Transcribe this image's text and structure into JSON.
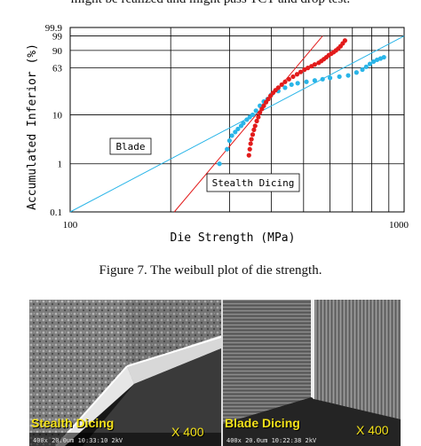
{
  "header_text": "might be realized and might pass TCT and drop test.",
  "figure_caption": "Figure 7.    The weibull plot of die strength.",
  "chart_data": {
    "type": "scatter",
    "title": "",
    "xlabel": "Die Strength (MPa)",
    "ylabel": "Accumulated Inferior (%)",
    "xscale": "log",
    "yscale": "weibull",
    "xlim": [
      100,
      1000
    ],
    "ylim": [
      0.1,
      99.9
    ],
    "x_tick_labels": [
      "100",
      "1000"
    ],
    "y_tick_labels": [
      "99.9",
      "99",
      "90",
      "63",
      "10",
      "1",
      "0.1"
    ],
    "grid": true,
    "annotations": [
      "Blade",
      "Stealth Dicing"
    ],
    "colors": {
      "blade": "#2ab5e8",
      "stealth": "#e21b1b",
      "grid": "#000000"
    },
    "series": [
      {
        "key": "blade",
        "points": [
          [
            280,
            1.0
          ],
          [
            295,
            2.0
          ],
          [
            300,
            3.0
          ],
          [
            305,
            3.8
          ],
          [
            312,
            4.5
          ],
          [
            318,
            5.2
          ],
          [
            325,
            6.0
          ],
          [
            330,
            6.8
          ],
          [
            338,
            8.0
          ],
          [
            345,
            9.0
          ],
          [
            352,
            10.0
          ],
          [
            360,
            12.0
          ],
          [
            370,
            15.0
          ],
          [
            380,
            18.0
          ],
          [
            390,
            20.0
          ],
          [
            400,
            24.0
          ],
          [
            420,
            28.0
          ],
          [
            440,
            32.0
          ],
          [
            460,
            36.0
          ],
          [
            480,
            38.0
          ],
          [
            510,
            40.0
          ],
          [
            540,
            42.0
          ],
          [
            570,
            44.0
          ],
          [
            600,
            46.0
          ],
          [
            640,
            48.0
          ],
          [
            680,
            50.0
          ],
          [
            720,
            55.0
          ],
          [
            750,
            60.0
          ],
          [
            770,
            65.0
          ],
          [
            790,
            70.0
          ],
          [
            810,
            74.0
          ],
          [
            830,
            77.0
          ],
          [
            850,
            79.0
          ],
          [
            870,
            81.0
          ]
        ],
        "fit": [
          [
            100,
            0.1
          ],
          [
            1000,
            99.0
          ]
        ]
      },
      {
        "key": "stealth",
        "points": [
          [
            343,
            1.5
          ],
          [
            345,
            2.0
          ],
          [
            347,
            2.6
          ],
          [
            349,
            3.2
          ],
          [
            352,
            4.0
          ],
          [
            355,
            5.0
          ],
          [
            358,
            6.0
          ],
          [
            362,
            7.5
          ],
          [
            366,
            9.0
          ],
          [
            370,
            11.0
          ],
          [
            375,
            13.0
          ],
          [
            380,
            15.0
          ],
          [
            386,
            17.5
          ],
          [
            392,
            20.0
          ],
          [
            398,
            23.0
          ],
          [
            405,
            26.0
          ],
          [
            412,
            29.0
          ],
          [
            420,
            32.0
          ],
          [
            430,
            36.0
          ],
          [
            440,
            40.0
          ],
          [
            452,
            44.0
          ],
          [
            465,
            48.0
          ],
          [
            478,
            52.0
          ],
          [
            490,
            56.0
          ],
          [
            503,
            60.0
          ],
          [
            515,
            63.0
          ],
          [
            528,
            66.0
          ],
          [
            540,
            69.0
          ],
          [
            555,
            72.0
          ],
          [
            565,
            75.0
          ],
          [
            575,
            78.0
          ],
          [
            585,
            81.0
          ],
          [
            595,
            84.0
          ],
          [
            605,
            86.0
          ],
          [
            615,
            88.0
          ],
          [
            625,
            90.0
          ],
          [
            635,
            92.0
          ],
          [
            645,
            94.0
          ],
          [
            655,
            96.0
          ],
          [
            665,
            97.5
          ]
        ],
        "fit": [
          [
            205,
            0.1
          ],
          [
            570,
            99.0
          ]
        ]
      }
    ]
  },
  "sem_images": {
    "left": {
      "label": "Stealth Dicing",
      "magnification": "X 400",
      "info": "400x 20.0um 10:33:10 2kV"
    },
    "right": {
      "label": "Blade Dicing",
      "magnification": "X 400",
      "info": "400x 20.0um 10:22:38 2kV"
    }
  }
}
